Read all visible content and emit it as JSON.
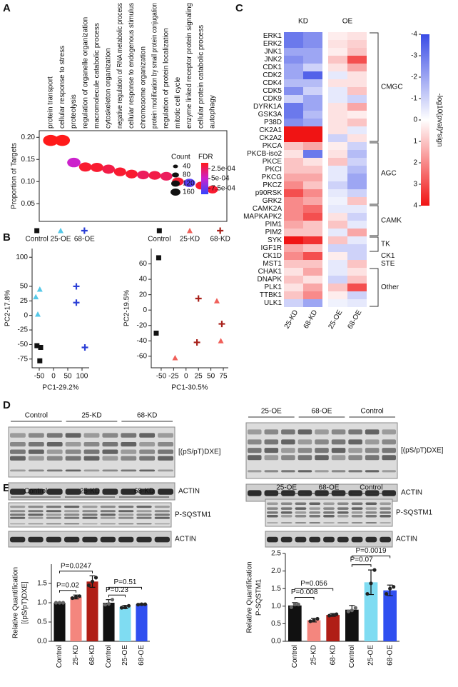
{
  "panel_labels": [
    "A",
    "B",
    "C",
    "D",
    "E"
  ],
  "chart_data": [
    {
      "type": "dot",
      "ylabel": "Proportion of Targets",
      "categories": [
        "protein transport",
        "cellular response to stress",
        "proteolysis",
        "regulation of organelle organization",
        "macromolecule catabolic process",
        "cytoskeleton organization",
        "negative regulation of RNA metabolic process",
        "cellular response to endogenous stimulus",
        "chromosome organization",
        "protein modification by small protein conjugation",
        "regulation of protein localization",
        "mitotic cell cycle",
        "enzyme linked receptor protein signaling",
        "cellular protein catabolic process",
        "autophagy"
      ],
      "values": [
        0.193,
        0.193,
        0.143,
        0.133,
        0.132,
        0.128,
        0.122,
        0.117,
        0.115,
        0.114,
        0.112,
        0.1,
        0.097,
        0.091,
        0.082
      ],
      "sizes": [
        160,
        160,
        120,
        110,
        110,
        110,
        100,
        100,
        100,
        100,
        100,
        90,
        90,
        80,
        80
      ],
      "fdr": [
        0.0001,
        0.0001,
        0.0005,
        0.00015,
        0.00015,
        0.0002,
        0.00015,
        0.00015,
        0.00025,
        0.0002,
        0.00025,
        0.00015,
        0.0008,
        0.00015,
        0.00015
      ],
      "ylim": [
        0.01,
        0.215
      ],
      "yticks": [
        {
          "value": 0.05,
          "label": "0.05"
        },
        {
          "value": 0.1,
          "label": "0.10"
        },
        {
          "value": 0.15,
          "label": "0.15"
        },
        {
          "value": 0.2,
          "label": "0.20"
        }
      ],
      "size_legend": {
        "title": "Count",
        "values": [
          40,
          80,
          120,
          160
        ]
      },
      "color_legend": {
        "title": "FDR",
        "lim": [
          0.0001,
          0.0009
        ],
        "colors": [
          "#ff1a1a",
          "#cc22cc",
          "#3344ff"
        ],
        "ticks": [
          {
            "value": 0.00025,
            "label": "2.5e-04"
          },
          {
            "value": 0.0005,
            "label": "5e-04"
          },
          {
            "value": 0.00075,
            "label": "7.5e-04"
          }
        ]
      }
    },
    {
      "type": "scatter",
      "xlabel": "PC1-29.2%",
      "ylabel": "PC2-17.8%",
      "xlim": [
        -75,
        125
      ],
      "ylim": [
        -90,
        115
      ],
      "xticks": [
        -50,
        0,
        50,
        100
      ],
      "yticks": [
        100,
        50,
        25,
        0,
        -25,
        -50,
        -75
      ],
      "series": [
        {
          "name": "Control",
          "color": "#111111",
          "marker": "square",
          "x": [
            -58,
            -45,
            -48
          ],
          "y": [
            -52,
            -55,
            -78
          ]
        },
        {
          "name": "25-OE",
          "color": "#55c8e8",
          "marker": "triangle",
          "x": [
            -62,
            -55,
            -48
          ],
          "y": [
            32,
            2,
            45
          ]
        },
        {
          "name": "68-OE",
          "color": "#2b3fd6",
          "marker": "plus",
          "x": [
            80,
            80,
            110
          ],
          "y": [
            50,
            22,
            -55
          ]
        }
      ]
    },
    {
      "type": "scatter",
      "xlabel": "PC1-30.5%",
      "ylabel": "PC2-19.5%",
      "xlim": [
        -70,
        85
      ],
      "ylim": [
        -75,
        80
      ],
      "xticks": [
        -50,
        -25,
        0,
        25,
        50,
        75
      ],
      "yticks": [
        60,
        40,
        20,
        0,
        -20,
        -40,
        -60
      ],
      "series": [
        {
          "name": "Control",
          "color": "#111111",
          "marker": "square",
          "x": [
            -55,
            -60
          ],
          "y": [
            68,
            -30
          ]
        },
        {
          "name": "25-KD",
          "color": "#f0605a",
          "marker": "triangle",
          "x": [
            -22,
            62,
            70
          ],
          "y": [
            -62,
            12,
            -40
          ]
        },
        {
          "name": "68-KD",
          "color": "#a8201a",
          "marker": "plus",
          "x": [
            25,
            22,
            72
          ],
          "y": [
            15,
            -42,
            -18
          ]
        }
      ]
    },
    {
      "type": "heatmap",
      "zlabel": "-log10(pval)*sign",
      "rows": [
        "ERK1",
        "ERK2",
        "JNK1",
        "JNK2",
        "CDK1",
        "CDK2",
        "CDK4",
        "CDK5",
        "CDK9",
        "DYRK1A",
        "GSK3A",
        "P38D",
        "CK2A1",
        "CK2A2",
        "PKCA",
        "PKCB-iso2",
        "PKCE",
        "PKCI",
        "PKCG",
        "PKCZ",
        "p90RSK",
        "GRK2",
        "CAMK2A",
        "MAPKAPK2",
        "PIM1",
        "PIM2",
        "SYK",
        "IGF1R",
        "CK1D",
        "MST1",
        "CHAK1",
        "DNAPK",
        "PLK1",
        "TTBK1",
        "ULK1"
      ],
      "columns": [
        "25-KD",
        "68-KD",
        "25-OE",
        "68-OE"
      ],
      "column_groups": [
        "KD",
        "OE"
      ],
      "row_groups": [
        {
          "name": "CMGC",
          "n_rows": 14
        },
        {
          "name": "AGC",
          "n_rows": 8
        },
        {
          "name": "CAMK",
          "n_rows": 4
        },
        {
          "name": "TK",
          "n_rows": 2
        },
        {
          "name": "CK1",
          "n_rows": 1
        },
        {
          "name": "STE",
          "n_rows": 1
        },
        {
          "name": "Other",
          "n_rows": 5
        }
      ],
      "values": [
        [
          -3,
          -2.5,
          0.3,
          0.5
        ],
        [
          -3,
          -2.5,
          0.5,
          0.8
        ],
        [
          -2,
          -2,
          0.3,
          1
        ],
        [
          -2.5,
          -2,
          1,
          3
        ],
        [
          -2,
          -1,
          0.5,
          1.5
        ],
        [
          -2,
          -3.5,
          -0.5,
          0.5
        ],
        [
          -1.5,
          -1.5,
          0.5,
          0.5
        ],
        [
          -2.5,
          -1,
          -0.5,
          1
        ],
        [
          -1,
          -2,
          -0.5,
          -1
        ],
        [
          -3,
          -2,
          0.5,
          1.5
        ],
        [
          -3,
          -1.5,
          0.5,
          0.3
        ],
        [
          -2.5,
          -2,
          0.5,
          1
        ],
        [
          4,
          4,
          0.5,
          -0.5
        ],
        [
          4,
          4,
          -1,
          0.5
        ],
        [
          1,
          1.5,
          0.3,
          -1
        ],
        [
          0.5,
          -3,
          0.5,
          -1.5
        ],
        [
          1,
          0.5,
          1,
          -1
        ],
        [
          1,
          1,
          -0.5,
          -1.5
        ],
        [
          1.5,
          1.5,
          -0.5,
          -2
        ],
        [
          2,
          1,
          -1,
          -2
        ],
        [
          3,
          2,
          -0.5,
          -1
        ],
        [
          2,
          1.5,
          -0.3,
          1
        ],
        [
          2,
          2.5,
          -0.5,
          -0.5
        ],
        [
          2,
          3,
          0.5,
          -1
        ],
        [
          1.5,
          1,
          1,
          -0.5
        ],
        [
          1,
          1,
          -0.5,
          1.5
        ],
        [
          4,
          3.5,
          1,
          -0.5
        ],
        [
          1.5,
          1,
          -1,
          -1
        ],
        [
          2,
          3,
          0.3,
          -1
        ],
        [
          1,
          1,
          -0.5,
          1
        ],
        [
          0.5,
          1.5,
          -0.5,
          0.5
        ],
        [
          1,
          0.5,
          -1,
          1
        ],
        [
          0.5,
          1.5,
          1,
          3
        ],
        [
          1,
          2,
          0.3,
          -1
        ],
        [
          -1,
          -2,
          -0.3,
          -0.5
        ]
      ],
      "zlim": [
        -4,
        4
      ],
      "zticks": [
        -4,
        -3,
        -2,
        -1,
        0,
        1,
        2,
        3,
        4
      ],
      "colors": [
        "#3a4ce6",
        "#ffffff",
        "#f01414"
      ]
    },
    {
      "type": "bar",
      "ylabel": [
        "Relative Quantification",
        "[(pS/pT)DXE]"
      ],
      "categories": [
        "Control",
        "25-KD",
        "68-KD",
        "Control",
        "25-OE",
        "68-OE"
      ],
      "values": [
        1.0,
        1.15,
        1.55,
        1.0,
        0.89,
        0.96
      ],
      "errors": [
        0.01,
        0.05,
        0.15,
        0.08,
        0.04,
        0.02
      ],
      "points": [
        [
          1.0,
          1.0,
          1.0
        ],
        [
          1.12,
          1.15,
          1.17
        ],
        [
          1.45,
          1.55,
          1.65
        ],
        [
          0.95,
          0.97,
          1.08
        ],
        [
          0.87,
          0.88,
          0.92
        ],
        [
          0.95,
          0.96,
          0.96
        ]
      ],
      "colors": [
        "#111111",
        "#f4867e",
        "#b01e16",
        "#111111",
        "#7fdcf2",
        "#2f4ff0"
      ],
      "ylim": [
        0,
        2
      ],
      "yticks": [
        {
          "value": 0,
          "label": "0.0"
        },
        {
          "value": 0.5,
          "label": "0.5"
        },
        {
          "value": 1,
          "label": "1.0"
        },
        {
          "value": 1.5,
          "label": "1.5"
        }
      ],
      "comparisons": [
        {
          "label": "P=0.02",
          "between": [
            0,
            1
          ]
        },
        {
          "label": "P=0.0247",
          "between": [
            0,
            2
          ]
        },
        {
          "label": "P=0.23",
          "between": [
            3,
            4
          ]
        },
        {
          "label": "P=0.51",
          "between": [
            3,
            5
          ]
        }
      ]
    },
    {
      "type": "bar",
      "ylabel": [
        "Relative Quantification",
        "P-SQSTM1"
      ],
      "categories": [
        "Control",
        "25-KD",
        "68-KD",
        "Control",
        "25-OE",
        "68-OE"
      ],
      "values": [
        1.02,
        0.6,
        0.75,
        0.9,
        1.68,
        1.45
      ],
      "errors": [
        0.08,
        0.05,
        0.04,
        0.12,
        0.35,
        0.15
      ],
      "points": [
        [
          0.97,
          1.05,
          1.05
        ],
        [
          0.57,
          0.6,
          0.64
        ],
        [
          0.73,
          0.75,
          0.77
        ],
        [
          0.85,
          0.88,
          0.95
        ],
        [
          1.35,
          1.65,
          2.03
        ],
        [
          1.35,
          1.5,
          1.55
        ]
      ],
      "colors": [
        "#111111",
        "#f4867e",
        "#b01e16",
        "#111111",
        "#7fdcf2",
        "#2f4ff0"
      ],
      "ylim": [
        0,
        2.5
      ],
      "yticks": [
        {
          "value": 0,
          "label": "0.0"
        },
        {
          "value": 0.5,
          "label": "0.5"
        },
        {
          "value": 1,
          "label": "1.0"
        },
        {
          "value": 1.5,
          "label": "1.5"
        },
        {
          "value": 2,
          "label": "2.0"
        },
        {
          "value": 2.5,
          "label": "2.5"
        }
      ],
      "comparisons": [
        {
          "label": "P=0.008",
          "between": [
            0,
            1
          ]
        },
        {
          "label": "P=0.056",
          "between": [
            0,
            2
          ]
        },
        {
          "label": "P=0.07",
          "between": [
            3,
            4
          ]
        },
        {
          "label": "P=0.0019",
          "between": [
            3,
            5
          ]
        }
      ]
    }
  ],
  "blots": [
    {
      "lanes": [
        "Control",
        "25-KD",
        "68-KD"
      ],
      "bands": [
        "[(pS/pT)DXE]",
        "ACTIN"
      ]
    },
    {
      "lanes": [
        "25-OE",
        "68-OE",
        "Control"
      ],
      "bands": [
        "[(pS/pT)DXE]",
        "ACTIN"
      ]
    },
    {
      "lanes": [
        "Control",
        "25-KD",
        "68-KD"
      ],
      "bands": [
        "P-SQSTM1",
        "ACTIN"
      ]
    },
    {
      "lanes": [
        "25-OE",
        "68-OE",
        "Control"
      ],
      "bands": [
        "P-SQSTM1",
        "ACTIN"
      ]
    }
  ]
}
